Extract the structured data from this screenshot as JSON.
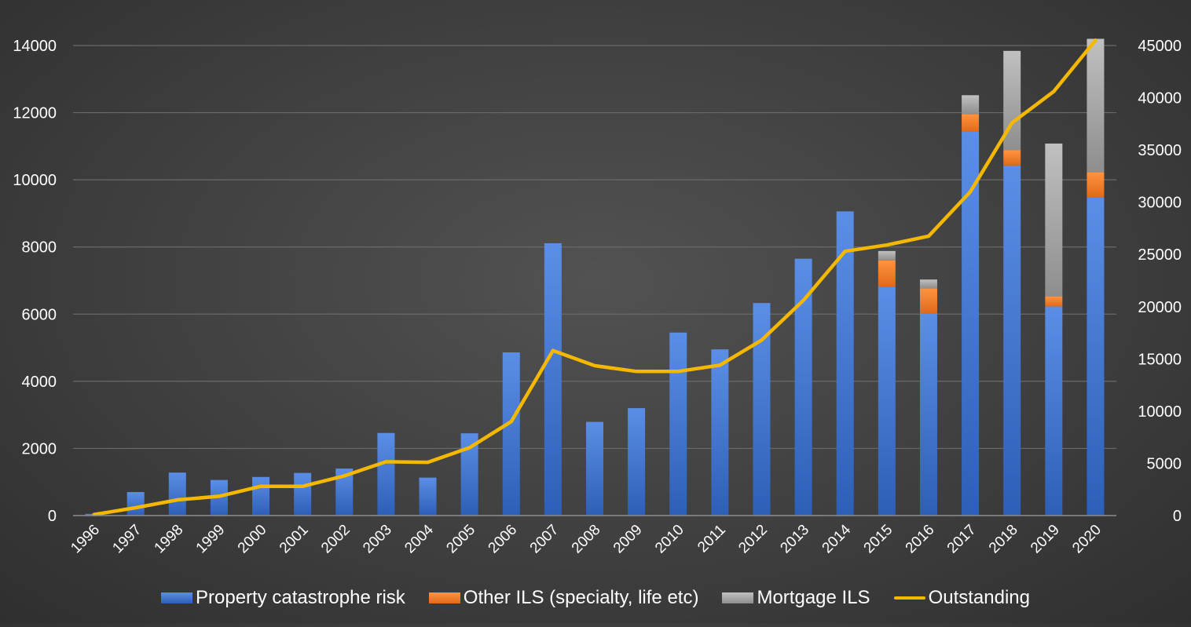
{
  "chart_data": {
    "type": "bar",
    "stacked": true,
    "categories": [
      "1996",
      "1997",
      "1998",
      "1999",
      "2000",
      "2001",
      "2002",
      "2003",
      "2004",
      "2005",
      "2006",
      "2007",
      "2008",
      "2009",
      "2010",
      "2011",
      "2012",
      "2013",
      "2014",
      "2015",
      "2016",
      "2017",
      "2018",
      "2019",
      "2020"
    ],
    "series": [
      {
        "name": "Property catastrophe risk",
        "kind": "bar",
        "axis": "left",
        "color": "#3a6bc4",
        "values": [
          50,
          700,
          1280,
          1060,
          1150,
          1270,
          1400,
          2460,
          1130,
          2450,
          4860,
          8110,
          2790,
          3200,
          5450,
          4950,
          6330,
          7650,
          9060,
          6820,
          6020,
          11430,
          10430,
          6230,
          9480
        ]
      },
      {
        "name": "Other ILS (specialty, life etc)",
        "kind": "bar",
        "axis": "left",
        "color": "#f07a28",
        "values": [
          0,
          0,
          0,
          0,
          0,
          0,
          0,
          0,
          0,
          0,
          0,
          0,
          0,
          0,
          0,
          0,
          0,
          0,
          0,
          780,
          750,
          530,
          450,
          300,
          750
        ]
      },
      {
        "name": "Mortgage ILS",
        "kind": "bar",
        "axis": "left",
        "color": "#a6a6a6",
        "values": [
          0,
          0,
          0,
          0,
          0,
          0,
          0,
          0,
          0,
          0,
          0,
          0,
          0,
          0,
          0,
          0,
          0,
          0,
          0,
          280,
          260,
          560,
          2960,
          4550,
          3970
        ]
      },
      {
        "name": "Outstanding",
        "kind": "line",
        "axis": "right",
        "color": "#f5b800",
        "values": [
          100,
          750,
          1500,
          1850,
          2800,
          2800,
          3800,
          5150,
          5100,
          6500,
          9000,
          15800,
          14350,
          13800,
          13800,
          14400,
          16800,
          20600,
          25300,
          25900,
          26750,
          31000,
          37600,
          40600,
          45500
        ]
      }
    ],
    "left_axis": {
      "min": 0,
      "max": 14000,
      "step": 2000,
      "ticks": [
        "0",
        "2000",
        "4000",
        "6000",
        "8000",
        "10000",
        "12000",
        "14000"
      ]
    },
    "right_axis": {
      "min": 0,
      "max": 45000,
      "step": 5000,
      "ticks": [
        "0",
        "5000",
        "10000",
        "15000",
        "20000",
        "25000",
        "30000",
        "35000",
        "40000",
        "45000"
      ]
    },
    "grid": true,
    "legend_position": "bottom",
    "title": "",
    "xlabel": "",
    "ylabel": ""
  },
  "legend": {
    "property": "Property catastrophe risk",
    "other": "Other ILS (specialty, life etc)",
    "mortgage": "Mortgage ILS",
    "outstanding": "Outstanding"
  },
  "colors": {
    "blue": "#3a6bc4",
    "orange": "#f07a28",
    "gray": "#a6a6a6",
    "line": "#f5b800",
    "grid": "#6a6a6a"
  }
}
